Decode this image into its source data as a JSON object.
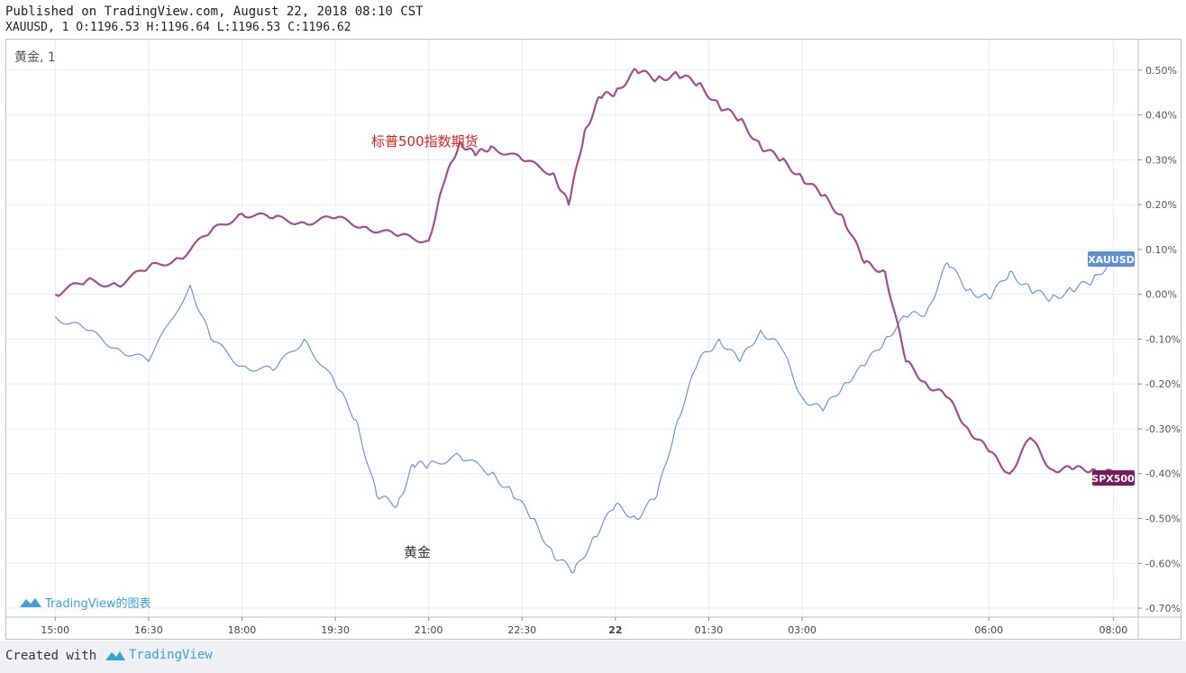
{
  "header": {
    "published": "Published on TradingView.com, August 22, 2018 08:10 CST",
    "ohlc": "XAUUSD, 1 O:1196.53 H:1196.64 L:1196.53 C:1196.62"
  },
  "pane_legend": "黄金, 1",
  "watermark": "TradingView的图表",
  "footer": {
    "created": "Created with",
    "brand": "TradingView"
  },
  "chart_data": {
    "type": "line",
    "ylim": [
      -0.72,
      0.57
    ],
    "ytick_values": [
      0.5,
      0.4,
      0.3,
      0.2,
      0.1,
      0.0,
      -0.1,
      -0.2,
      -0.3,
      -0.4,
      -0.5,
      -0.6,
      -0.7
    ],
    "ytick_labels": [
      "0.50%",
      "0.40%",
      "0.30%",
      "0.20%",
      "0.10%",
      "0.00%",
      "-0.10%",
      "-0.20%",
      "-0.30%",
      "-0.40%",
      "-0.50%",
      "-0.60%",
      "-0.70%"
    ],
    "xlim_minutes": [
      820,
      1270
    ],
    "xticks": [
      {
        "label": "15:00",
        "t": 900,
        "bold": false
      },
      {
        "label": "16:30",
        "t": 990,
        "bold": false
      },
      {
        "label": "18:00",
        "t": 1080,
        "bold": false
      },
      {
        "label": "19:30",
        "t": 1170,
        "bold": false
      },
      {
        "label": "21:00",
        "t": 1260,
        "bold": false
      },
      {
        "label": "22:30",
        "t": 1350,
        "bold": false
      },
      {
        "label": "22",
        "t": 1440,
        "bold": true
      },
      {
        "label": "01:30",
        "t": 1530,
        "bold": false
      },
      {
        "label": "03:00",
        "t": 1620,
        "bold": false
      },
      {
        "label": "06:00",
        "t": 1800,
        "bold": false
      },
      {
        "label": "08:00",
        "t": 1920,
        "bold": false
      }
    ],
    "series": [
      {
        "name": "XAUUSD",
        "label": "XAUUSD",
        "annotation": "黄金",
        "color": "#5b8fde",
        "x": [
          "15:00",
          "15:30",
          "16:00",
          "16:30",
          "17:10",
          "17:30",
          "18:00",
          "18:30",
          "19:00",
          "19:30",
          "19:50",
          "20:10",
          "20:30",
          "20:45",
          "21:00",
          "21:30",
          "22:00",
          "22:20",
          "22:40",
          "23:00",
          "23:20",
          "23:40",
          "00:00",
          "00:20",
          "00:40",
          "01:00",
          "01:20",
          "01:40",
          "02:00",
          "02:20",
          "02:40",
          "03:00",
          "03:20",
          "03:40",
          "04:00",
          "04:20",
          "04:40",
          "05:00",
          "05:20",
          "05:40",
          "06:00",
          "06:20",
          "06:40",
          "07:00",
          "07:20",
          "07:40",
          "08:00"
        ],
        "values": [
          -0.05,
          -0.08,
          -0.12,
          -0.15,
          0.02,
          -0.1,
          -0.16,
          -0.17,
          -0.1,
          -0.2,
          -0.28,
          -0.45,
          -0.47,
          -0.38,
          -0.38,
          -0.36,
          -0.4,
          -0.44,
          -0.5,
          -0.58,
          -0.62,
          -0.54,
          -0.47,
          -0.5,
          -0.45,
          -0.28,
          -0.15,
          -0.1,
          -0.15,
          -0.08,
          -0.12,
          -0.23,
          -0.26,
          -0.2,
          -0.16,
          -0.1,
          -0.05,
          -0.04,
          0.07,
          0.01,
          -0.01,
          0.05,
          0.01,
          -0.01,
          0.01,
          0.03,
          0.08
        ]
      },
      {
        "name": "SPX500",
        "label": "SPX500",
        "annotation": "标普500指数期货",
        "color": "#a0508f",
        "x": [
          "15:00",
          "15:30",
          "16:00",
          "16:30",
          "17:00",
          "17:30",
          "18:00",
          "18:30",
          "19:00",
          "19:30",
          "20:00",
          "20:30",
          "21:00",
          "21:15",
          "21:30",
          "21:45",
          "22:00",
          "22:30",
          "23:00",
          "23:15",
          "23:30",
          "23:45",
          "00:00",
          "00:20",
          "00:40",
          "01:00",
          "01:20",
          "01:40",
          "02:00",
          "02:20",
          "02:40",
          "03:00",
          "03:20",
          "03:40",
          "04:00",
          "04:20",
          "04:40",
          "05:00",
          "05:20",
          "05:40",
          "06:00",
          "06:20",
          "06:40",
          "07:00",
          "07:20",
          "07:40",
          "08:00"
        ],
        "values": [
          0.0,
          0.03,
          0.02,
          0.06,
          0.08,
          0.14,
          0.18,
          0.17,
          0.16,
          0.17,
          0.15,
          0.13,
          0.12,
          0.25,
          0.34,
          0.31,
          0.33,
          0.3,
          0.27,
          0.2,
          0.36,
          0.44,
          0.45,
          0.5,
          0.48,
          0.49,
          0.47,
          0.42,
          0.39,
          0.33,
          0.3,
          0.26,
          0.22,
          0.17,
          0.07,
          0.05,
          -0.15,
          -0.2,
          -0.23,
          -0.3,
          -0.35,
          -0.4,
          -0.32,
          -0.39,
          -0.39,
          -0.39,
          -0.4
        ]
      }
    ]
  },
  "colors": {
    "grid": "#e9ecf0",
    "axis_text": "#555555",
    "gold": "#5b8fde",
    "spx": "#a0508f",
    "spx_label": "#7a1a5e",
    "annot_red": "#e02020",
    "watermark": "#3aa0d8"
  }
}
